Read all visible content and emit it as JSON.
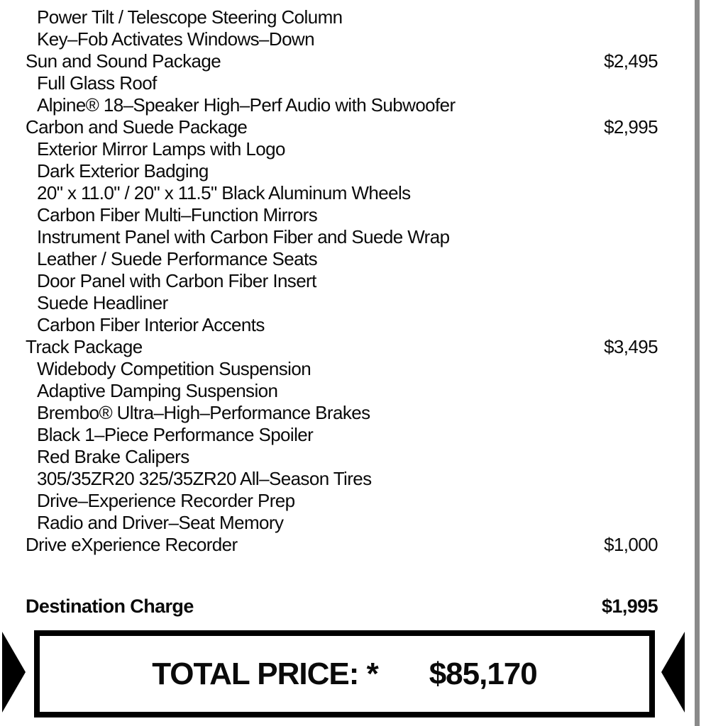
{
  "colors": {
    "text": "#0a0a0a",
    "edge_strip": "#8a8a8a"
  },
  "options": {
    "rows": [
      {
        "text": "Power Tilt / Telescope Steering Column",
        "indent": true
      },
      {
        "text": "Key–Fob Activates Windows–Down",
        "indent": true
      },
      {
        "text": "Sun and Sound Package",
        "price": "$2,495",
        "indent": false
      },
      {
        "text": "Full Glass Roof",
        "indent": true
      },
      {
        "text": "Alpine® 18–Speaker High–Perf Audio with Subwoofer",
        "indent": true
      },
      {
        "text": "Carbon and Suede Package",
        "price": "$2,995",
        "indent": false
      },
      {
        "text": "Exterior Mirror Lamps with Logo",
        "indent": true
      },
      {
        "text": "Dark Exterior Badging",
        "indent": true
      },
      {
        "text": "20\" x 11.0\" / 20\" x 11.5\" Black Aluminum Wheels",
        "indent": true
      },
      {
        "text": "Carbon Fiber Multi–Function Mirrors",
        "indent": true
      },
      {
        "text": "Instrument Panel with Carbon Fiber and Suede Wrap",
        "indent": true
      },
      {
        "text": "Leather / Suede Performance Seats",
        "indent": true
      },
      {
        "text": "Door Panel with Carbon Fiber Insert",
        "indent": true
      },
      {
        "text": "Suede Headliner",
        "indent": true
      },
      {
        "text": "Carbon Fiber Interior Accents",
        "indent": true
      },
      {
        "text": "Track Package",
        "price": "$3,495",
        "indent": false
      },
      {
        "text": "Widebody Competition Suspension",
        "indent": true
      },
      {
        "text": "Adaptive Damping Suspension",
        "indent": true
      },
      {
        "text": "Brembo® Ultra–High–Performance Brakes",
        "indent": true
      },
      {
        "text": "Black 1–Piece Performance Spoiler",
        "indent": true
      },
      {
        "text": "Red Brake Calipers",
        "indent": true
      },
      {
        "text": "305/35ZR20 325/35ZR20 All–Season Tires",
        "indent": true
      },
      {
        "text": "Drive–Experience Recorder Prep",
        "indent": true
      },
      {
        "text": "Radio and Driver–Seat Memory",
        "indent": true
      },
      {
        "text": "Drive eXperience Recorder",
        "price": "$1,000",
        "indent": false
      }
    ]
  },
  "destination": {
    "label": "Destination Charge",
    "price": "$1,995"
  },
  "total": {
    "label": "TOTAL PRICE: *",
    "value": "$85,170"
  }
}
